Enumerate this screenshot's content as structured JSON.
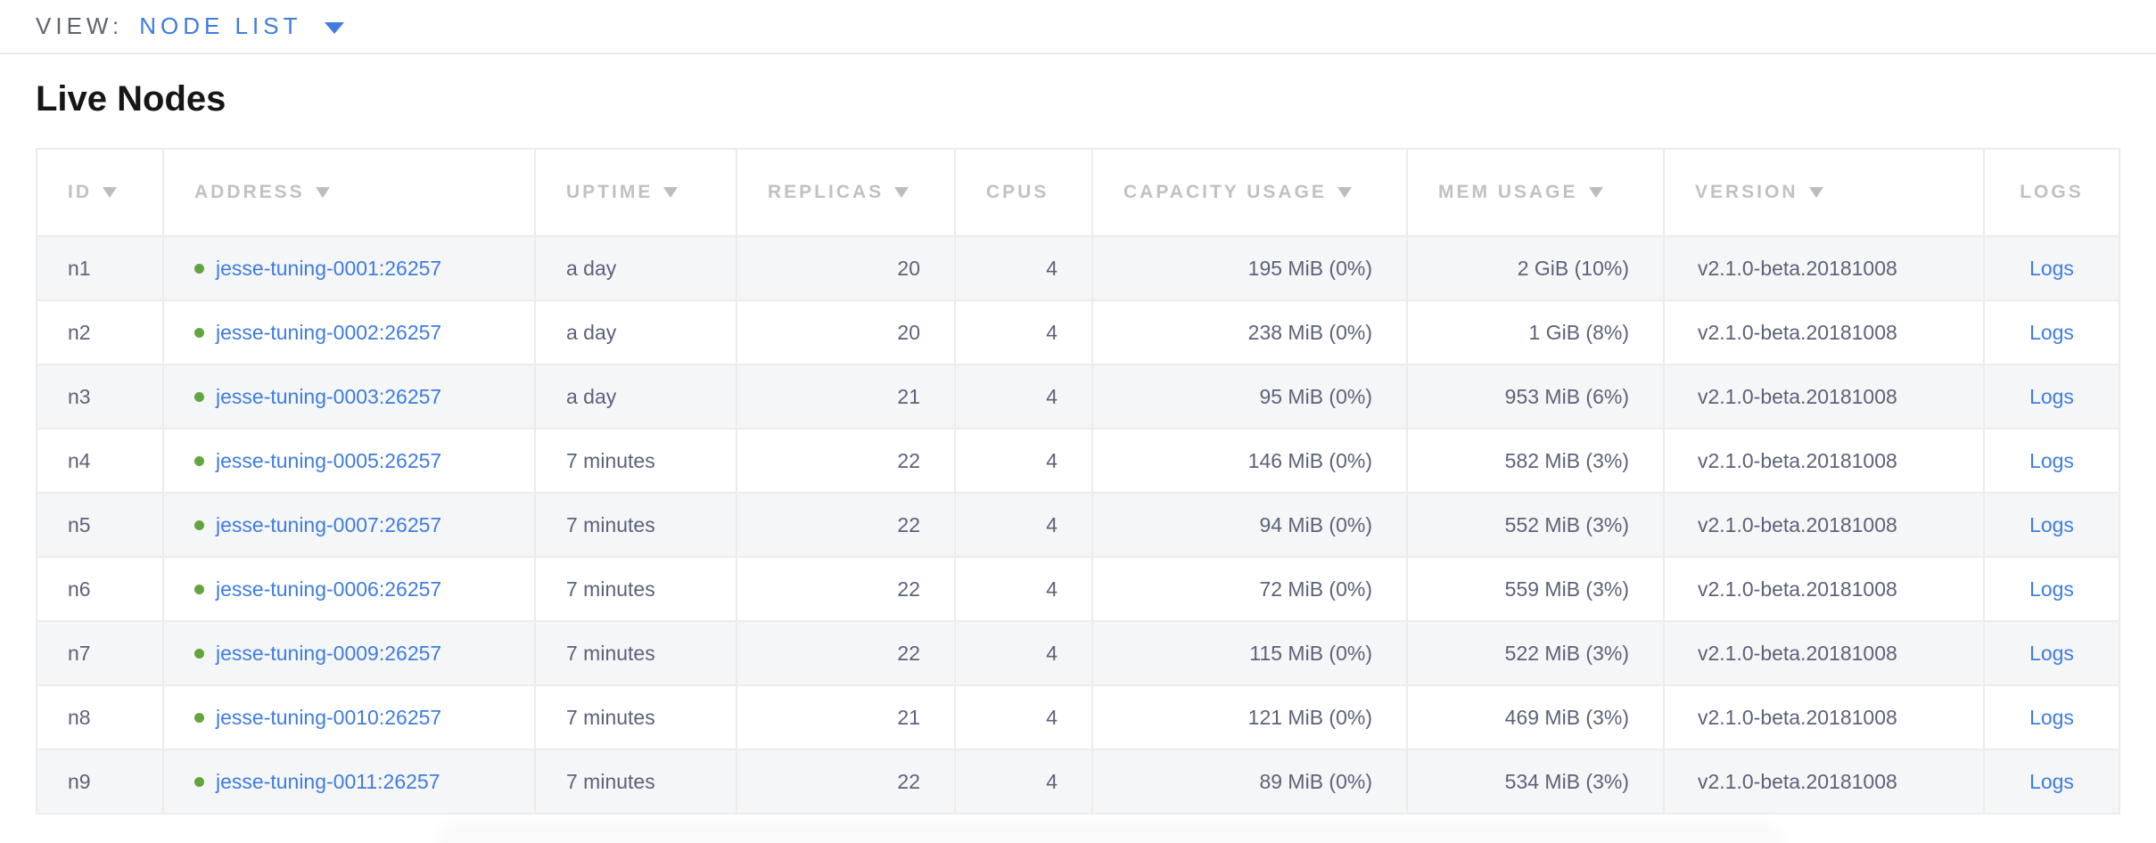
{
  "colors": {
    "accent_blue": "#3e7ce0",
    "status_green": "#62a53c",
    "header_gray": "#c1c1c4",
    "cell_text": "#5b6379"
  },
  "view_bar": {
    "label": "VIEW:",
    "selected": "NODE LIST"
  },
  "page": {
    "title": "Live Nodes"
  },
  "table": {
    "columns": [
      {
        "key": "id",
        "label": "ID",
        "sortable": true
      },
      {
        "key": "address",
        "label": "ADDRESS",
        "sortable": true
      },
      {
        "key": "uptime",
        "label": "UPTIME",
        "sortable": true
      },
      {
        "key": "replicas",
        "label": "REPLICAS",
        "sortable": true
      },
      {
        "key": "cpus",
        "label": "CPUS",
        "sortable": false
      },
      {
        "key": "capacity",
        "label": "CAPACITY USAGE",
        "sortable": true
      },
      {
        "key": "mem",
        "label": "MEM USAGE",
        "sortable": true
      },
      {
        "key": "version",
        "label": "VERSION",
        "sortable": true
      },
      {
        "key": "logs",
        "label": "LOGS",
        "sortable": false
      }
    ],
    "rows": [
      {
        "id": "n1",
        "address": "jesse-tuning-0001:26257",
        "uptime": "a day",
        "replicas": "20",
        "cpus": "4",
        "capacity": "195 MiB (0%)",
        "mem": "2 GiB (10%)",
        "version": "v2.1.0-beta.20181008",
        "logs": "Logs"
      },
      {
        "id": "n2",
        "address": "jesse-tuning-0002:26257",
        "uptime": "a day",
        "replicas": "20",
        "cpus": "4",
        "capacity": "238 MiB (0%)",
        "mem": "1 GiB (8%)",
        "version": "v2.1.0-beta.20181008",
        "logs": "Logs"
      },
      {
        "id": "n3",
        "address": "jesse-tuning-0003:26257",
        "uptime": "a day",
        "replicas": "21",
        "cpus": "4",
        "capacity": "95 MiB (0%)",
        "mem": "953 MiB (6%)",
        "version": "v2.1.0-beta.20181008",
        "logs": "Logs"
      },
      {
        "id": "n4",
        "address": "jesse-tuning-0005:26257",
        "uptime": "7 minutes",
        "replicas": "22",
        "cpus": "4",
        "capacity": "146 MiB (0%)",
        "mem": "582 MiB (3%)",
        "version": "v2.1.0-beta.20181008",
        "logs": "Logs"
      },
      {
        "id": "n5",
        "address": "jesse-tuning-0007:26257",
        "uptime": "7 minutes",
        "replicas": "22",
        "cpus": "4",
        "capacity": "94 MiB (0%)",
        "mem": "552 MiB (3%)",
        "version": "v2.1.0-beta.20181008",
        "logs": "Logs"
      },
      {
        "id": "n6",
        "address": "jesse-tuning-0006:26257",
        "uptime": "7 minutes",
        "replicas": "22",
        "cpus": "4",
        "capacity": "72 MiB (0%)",
        "mem": "559 MiB (3%)",
        "version": "v2.1.0-beta.20181008",
        "logs": "Logs"
      },
      {
        "id": "n7",
        "address": "jesse-tuning-0009:26257",
        "uptime": "7 minutes",
        "replicas": "22",
        "cpus": "4",
        "capacity": "115 MiB (0%)",
        "mem": "522 MiB (3%)",
        "version": "v2.1.0-beta.20181008",
        "logs": "Logs"
      },
      {
        "id": "n8",
        "address": "jesse-tuning-0010:26257",
        "uptime": "7 minutes",
        "replicas": "21",
        "cpus": "4",
        "capacity": "121 MiB (0%)",
        "mem": "469 MiB (3%)",
        "version": "v2.1.0-beta.20181008",
        "logs": "Logs"
      },
      {
        "id": "n9",
        "address": "jesse-tuning-0011:26257",
        "uptime": "7 minutes",
        "replicas": "22",
        "cpus": "4",
        "capacity": "89 MiB (0%)",
        "mem": "534 MiB (3%)",
        "version": "v2.1.0-beta.20181008",
        "logs": "Logs"
      }
    ]
  }
}
